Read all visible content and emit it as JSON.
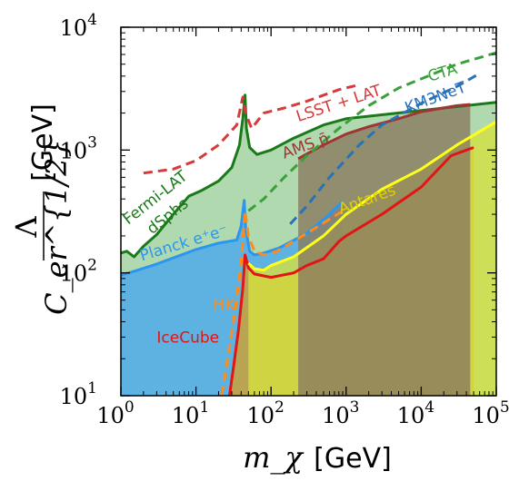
{
  "chart_data": {
    "type": "line",
    "xlabel": "m_χ",
    "xlabel_unit": "[GeV]",
    "ylabel_num": "Λ",
    "ylabel_den": "C_er^{1/2}",
    "ylabel_unit": "[GeV]",
    "x_scale": "log",
    "y_scale": "log",
    "xlim": [
      1,
      100000
    ],
    "ylim": [
      10,
      10000
    ],
    "x_ticks": [
      {
        "base": "10",
        "exp": "0"
      },
      {
        "base": "10",
        "exp": "1"
      },
      {
        "base": "10",
        "exp": "2"
      },
      {
        "base": "10",
        "exp": "3"
      },
      {
        "base": "10",
        "exp": "4"
      },
      {
        "base": "10",
        "exp": "5"
      }
    ],
    "y_ticks": [
      {
        "base": "10",
        "exp": "1"
      },
      {
        "base": "10",
        "exp": "2"
      },
      {
        "base": "10",
        "exp": "3"
      },
      {
        "base": "10",
        "exp": "4"
      }
    ],
    "grid": false,
    "legend": "none",
    "series": [
      {
        "name": "Fermi-LAT dSphs",
        "color": "#1a7a1a",
        "style": "solid",
        "fill": "#9ccf9c",
        "points": [
          [
            1,
            145
          ],
          [
            1.2,
            150
          ],
          [
            1.5,
            135
          ],
          [
            2,
            165
          ],
          [
            3,
            205
          ],
          [
            5,
            300
          ],
          [
            8,
            420
          ],
          [
            12,
            470
          ],
          [
            20,
            560
          ],
          [
            30,
            720
          ],
          [
            38,
            1100
          ],
          [
            42,
            1800
          ],
          [
            45,
            2800
          ],
          [
            47,
            1500
          ],
          [
            52,
            1050
          ],
          [
            65,
            920
          ],
          [
            100,
            1000
          ],
          [
            200,
            1250
          ],
          [
            500,
            1600
          ],
          [
            1000,
            1800
          ],
          [
            10000,
            2100
          ],
          [
            100000,
            2450
          ]
        ]
      },
      {
        "name": "Planck e⁺e⁻",
        "color": "#2a96f0",
        "style": "solid",
        "fill": "#4aa8ee",
        "points": [
          [
            1,
            96
          ],
          [
            1.5,
            103
          ],
          [
            3,
            118
          ],
          [
            10,
            155
          ],
          [
            20,
            175
          ],
          [
            35,
            185
          ],
          [
            40,
            240
          ],
          [
            44,
            390
          ],
          [
            46,
            230
          ],
          [
            52,
            150
          ],
          [
            60,
            140
          ],
          [
            80,
            145
          ],
          [
            130,
            160
          ],
          [
            300,
            210
          ],
          [
            600,
            300
          ],
          [
            900,
            380
          ]
        ]
      },
      {
        "name": "IceCube",
        "color": "#e21414",
        "style": "solid",
        "fill": "#d0a030",
        "points": [
          [
            28,
            10
          ],
          [
            32,
            18
          ],
          [
            37,
            35
          ],
          [
            42,
            75
          ],
          [
            45,
            140
          ],
          [
            50,
            110
          ],
          [
            60,
            98
          ],
          [
            100,
            92
          ],
          [
            200,
            100
          ],
          [
            300,
            115
          ],
          [
            500,
            130
          ],
          [
            800,
            180
          ],
          [
            1000,
            200
          ],
          [
            3000,
            300
          ],
          [
            10000,
            500
          ],
          [
            25000,
            900
          ],
          [
            50000,
            1050
          ]
        ]
      },
      {
        "name": "HK",
        "color": "#ff8c1a",
        "style": "dashed",
        "points": [
          [
            22,
            10
          ],
          [
            28,
            25
          ],
          [
            34,
            55
          ],
          [
            40,
            120
          ],
          [
            45,
            320
          ],
          [
            50,
            200
          ],
          [
            60,
            150
          ],
          [
            80,
            140
          ],
          [
            120,
            150
          ],
          [
            300,
            210
          ],
          [
            700,
            290
          ],
          [
            1000,
            330
          ]
        ]
      },
      {
        "name": "Antares",
        "color": "#ffff1a",
        "style": "solid",
        "fill": "#d4e040",
        "points": [
          [
            50,
            120
          ],
          [
            60,
            108
          ],
          [
            80,
            105
          ],
          [
            100,
            115
          ],
          [
            200,
            135
          ],
          [
            500,
            200
          ],
          [
            1000,
            300
          ],
          [
            3000,
            480
          ],
          [
            10000,
            700
          ],
          [
            30000,
            1100
          ],
          [
            100000,
            1700
          ]
        ]
      },
      {
        "name": "AMS p̄",
        "color": "#a03535",
        "style": "solid",
        "fill": "#8a7a60",
        "points": [
          [
            230,
            850
          ],
          [
            300,
            930
          ],
          [
            500,
            1100
          ],
          [
            1000,
            1350
          ],
          [
            2000,
            1550
          ],
          [
            5000,
            1800
          ],
          [
            10000,
            2050
          ],
          [
            30000,
            2300
          ],
          [
            45000,
            2350
          ]
        ]
      },
      {
        "name": "LSST + LAT",
        "color": "#d63a3a",
        "style": "dashed",
        "points": [
          [
            2,
            650
          ],
          [
            5,
            700
          ],
          [
            10,
            820
          ],
          [
            20,
            1100
          ],
          [
            35,
            1600
          ],
          [
            42,
            2700
          ],
          [
            46,
            2000
          ],
          [
            55,
            1500
          ],
          [
            80,
            2000
          ],
          [
            150,
            2200
          ],
          [
            300,
            2500
          ],
          [
            800,
            3100
          ],
          [
            1500,
            3400
          ]
        ]
      },
      {
        "name": "CTA",
        "color": "#3aa03a",
        "style": "dashed",
        "points": [
          [
            50,
            320
          ],
          [
            80,
            400
          ],
          [
            150,
            600
          ],
          [
            300,
            900
          ],
          [
            800,
            1500
          ],
          [
            2000,
            2300
          ],
          [
            5000,
            3200
          ],
          [
            10000,
            3800
          ],
          [
            30000,
            5000
          ],
          [
            100000,
            6200
          ]
        ]
      },
      {
        "name": "KM3NeT",
        "color": "#2a72b8",
        "style": "dashed",
        "points": [
          [
            180,
            250
          ],
          [
            300,
            350
          ],
          [
            600,
            600
          ],
          [
            1500,
            1100
          ],
          [
            3000,
            1600
          ],
          [
            10000,
            2400
          ],
          [
            30000,
            3300
          ],
          [
            60000,
            4200
          ]
        ]
      }
    ],
    "vertical_bands": [
      {
        "x": [
          48,
          230
        ],
        "color": "#d4e040"
      },
      {
        "x": [
          230,
          900
        ],
        "color": "#8a7a60"
      },
      {
        "x": [
          900,
          45000
        ],
        "color": "#d0a030"
      },
      {
        "x": [
          45000,
          100000
        ],
        "color": "#d4e040"
      }
    ],
    "annotations": [
      {
        "text": "Fermi-LAT",
        "color": "#1a7a1a"
      },
      {
        "text": "dSphs",
        "color": "#1a7a1a"
      },
      {
        "text": "Planck e⁺e⁻",
        "color": "#2a96f0"
      },
      {
        "text": "HK",
        "color": "#ff8c1a"
      },
      {
        "text": "IceCube",
        "color": "#e21414"
      },
      {
        "text": "Antares",
        "color": "#e0d000"
      },
      {
        "text": "AMS p̄",
        "color": "#a03535"
      },
      {
        "text": "LSST + LAT",
        "color": "#d63a3a"
      },
      {
        "text": "CTA",
        "color": "#3aa03a"
      },
      {
        "text": "KM3NeT",
        "color": "#2a72b8"
      }
    ]
  }
}
